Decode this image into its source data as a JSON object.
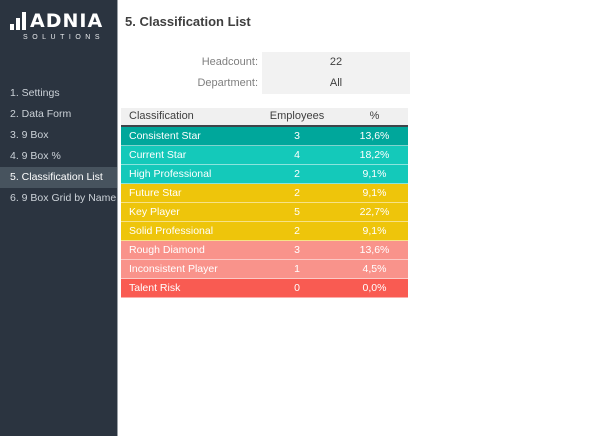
{
  "brand": {
    "name": "ADNIA",
    "tagline": "SOLUTIONS"
  },
  "sidebar": {
    "active_index": 4,
    "items": [
      {
        "label": "1. Settings"
      },
      {
        "label": "2. Data Form"
      },
      {
        "label": "3. 9 Box"
      },
      {
        "label": "4. 9 Box %"
      },
      {
        "label": "5. Classification List"
      },
      {
        "label": "6. 9 Box Grid by Name"
      }
    ]
  },
  "header": {
    "title": "5. Classification List"
  },
  "summary": {
    "fields": [
      {
        "label": "Headcount:",
        "value": "22"
      },
      {
        "label": "Department:",
        "value": "All"
      }
    ]
  },
  "table": {
    "columns": [
      "Classification",
      "Employees",
      "%"
    ],
    "rows": [
      {
        "classification": "Consistent Star",
        "employees": "3",
        "percent": "13,6%",
        "color": "#00a79b"
      },
      {
        "classification": "Current Star",
        "employees": "4",
        "percent": "18,2%",
        "color": "#14c9ba"
      },
      {
        "classification": "High Professional",
        "employees": "2",
        "percent": "9,1%",
        "color": "#14c9ba"
      },
      {
        "classification": "Future Star",
        "employees": "2",
        "percent": "9,1%",
        "color": "#eec50b"
      },
      {
        "classification": "Key Player",
        "employees": "5",
        "percent": "22,7%",
        "color": "#eec50b"
      },
      {
        "classification": "Solid Professional",
        "employees": "2",
        "percent": "9,1%",
        "color": "#eec50b"
      },
      {
        "classification": "Rough Diamond",
        "employees": "3",
        "percent": "13,6%",
        "color": "#f9938b"
      },
      {
        "classification": "Inconsistent Player",
        "employees": "1",
        "percent": "4,5%",
        "color": "#f9938b"
      },
      {
        "classification": "Talent Risk",
        "employees": "0",
        "percent": "0,0%",
        "color": "#f95b52"
      }
    ]
  },
  "colors": {
    "sidebar_bg": "#2b3440",
    "sidebar_active_bg": "#47535e",
    "teal_dark": "#00a79b",
    "teal": "#14c9ba",
    "yellow": "#eec50b",
    "coral": "#f9938b",
    "red": "#f95b52",
    "summary_box_bg": "#f2f2f2",
    "table_header_bg": "#f0f0f0"
  }
}
